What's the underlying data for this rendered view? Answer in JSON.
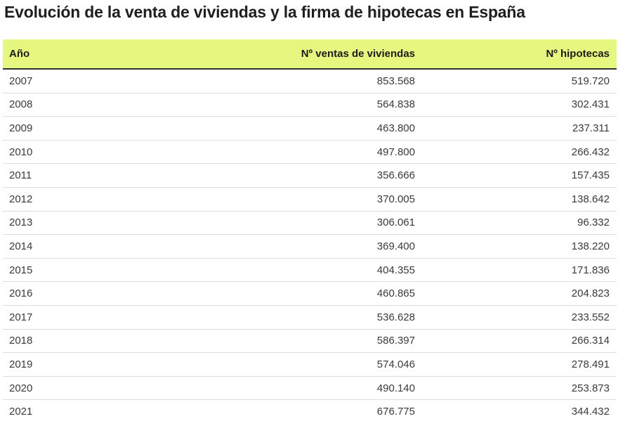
{
  "chart_data": {
    "type": "table",
    "title": "Evolución de la venta de viviendas y la firma de hipotecas en España",
    "columns": [
      "Año",
      "Nº ventas de viviendas",
      "Nº hipotecas"
    ],
    "rows": [
      [
        "2007",
        "853.568",
        "519.720"
      ],
      [
        "2008",
        "564.838",
        "302.431"
      ],
      [
        "2009",
        "463.800",
        "237.311"
      ],
      [
        "2010",
        "497.800",
        "266.432"
      ],
      [
        "2011",
        "356.666",
        "157.435"
      ],
      [
        "2012",
        "370.005",
        "138.642"
      ],
      [
        "2013",
        "306.061",
        "96.332"
      ],
      [
        "2014",
        "369.400",
        "138.220"
      ],
      [
        "2015",
        "404.355",
        "171.836"
      ],
      [
        "2016",
        "460.865",
        "204.823"
      ],
      [
        "2017",
        "536.628",
        "233.552"
      ],
      [
        "2018",
        "586.397",
        "266.314"
      ],
      [
        "2019",
        "574.046",
        "278.491"
      ],
      [
        "2020",
        "490.140",
        "253.873"
      ],
      [
        "2021",
        "676.775",
        "344.432"
      ]
    ]
  },
  "colors": {
    "header_background": "#e6f780",
    "header_border": "#333333",
    "row_divider": "#dcdcdc"
  }
}
